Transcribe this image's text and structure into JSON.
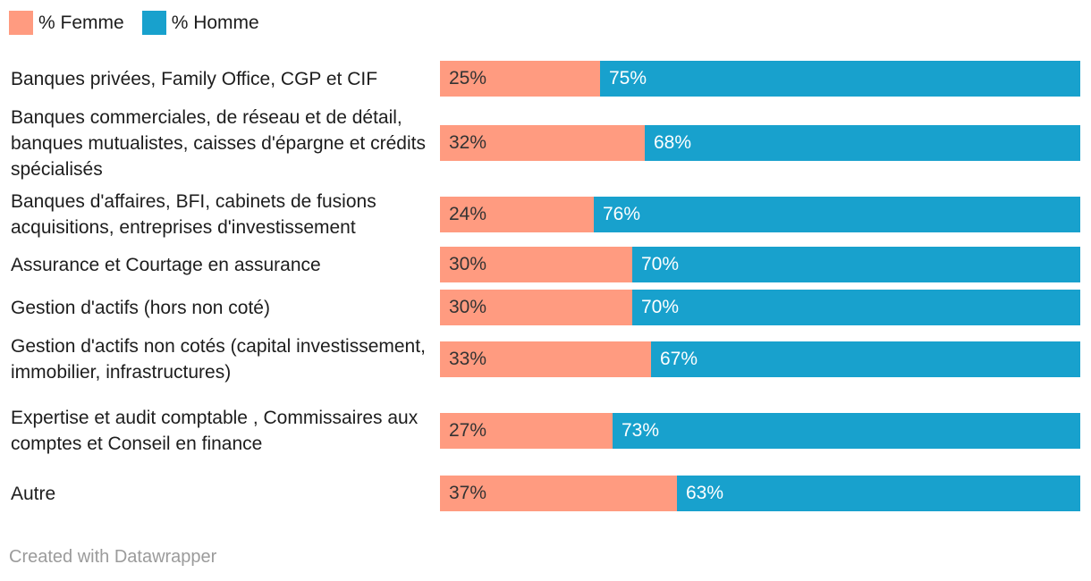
{
  "legend": {
    "femme_label": "% Femme",
    "homme_label": "% Homme"
  },
  "colors": {
    "femme": "#ff9b80",
    "homme": "#18a1cd",
    "femme_text": "#333333",
    "homme_text": "#ffffff"
  },
  "footer": {
    "credit": "Created with Datawrapper"
  },
  "chart_data": {
    "type": "bar",
    "orientation": "horizontal",
    "stacked": true,
    "title": "",
    "xlabel": "",
    "ylabel": "",
    "xlim": [
      0,
      100
    ],
    "legend_position": "top-left",
    "categories": [
      "Banques privées, Family Office, CGP et CIF",
      "Banques commerciales, de réseau et de détail, banques mutualistes, caisses d'épargne et crédits spécialisés",
      "Banques d'affaires, BFI, cabinets de fusions acquisitions, entreprises d'investissement",
      "Assurance et Courtage en assurance",
      "Gestion d'actifs (hors non coté)",
      "Gestion d'actifs non cotés (capital investissement, immobilier, infrastructures)",
      "Expertise et audit comptable , Commissaires aux comptes et Conseil en finance",
      "Autre"
    ],
    "series": [
      {
        "name": "% Femme",
        "values": [
          25,
          32,
          24,
          30,
          30,
          33,
          27,
          37
        ],
        "labels": [
          "25%",
          "32%",
          "24%",
          "30%",
          "30%",
          "33%",
          "27%",
          "37%"
        ]
      },
      {
        "name": "% Homme",
        "values": [
          75,
          68,
          76,
          70,
          70,
          67,
          73,
          63
        ],
        "labels": [
          "75%",
          "68%",
          "76%",
          "70%",
          "70%",
          "67%",
          "73%",
          "63%"
        ]
      }
    ]
  }
}
